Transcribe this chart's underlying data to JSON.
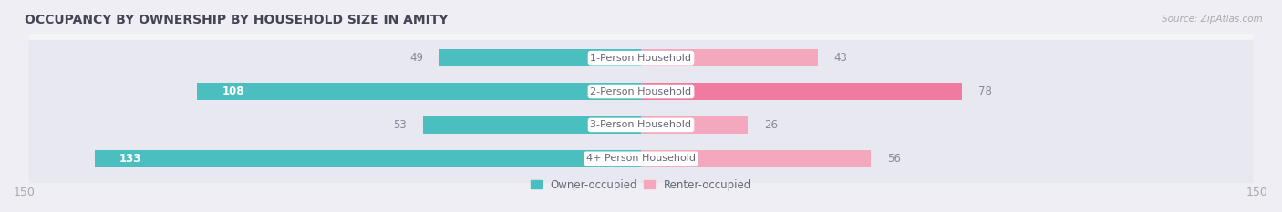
{
  "title": "OCCUPANCY BY OWNERSHIP BY HOUSEHOLD SIZE IN AMITY",
  "source": "Source: ZipAtlas.com",
  "categories": [
    "1-Person Household",
    "2-Person Household",
    "3-Person Household",
    "4+ Person Household"
  ],
  "owner_values": [
    49,
    108,
    53,
    133
  ],
  "renter_values": [
    43,
    78,
    26,
    56
  ],
  "owner_color": "#4bbfbf",
  "renter_color_light": "#f4a8be",
  "renter_color_dark": "#f07aa0",
  "label_inside_color": "#ffffff",
  "label_outside_color": "#888899",
  "axis_max": 150,
  "bg_color": "#eeeef4",
  "row_bg_color": "#f5f5f8",
  "row_bg_color2": "#e8e8f0",
  "center_label_color": "#666677",
  "title_color": "#444455",
  "axis_label_color": "#aaaaaa",
  "inside_threshold": 60
}
